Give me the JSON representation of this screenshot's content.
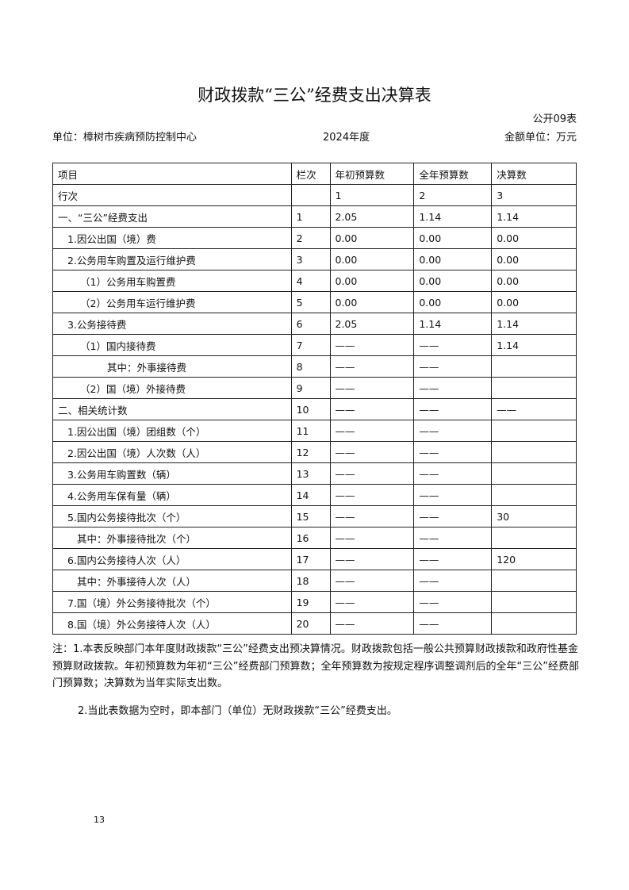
{
  "title": "财政拨款“三公”经费支出决算表",
  "form_no": "公开09表",
  "unit": "单位：樟树市疾病预防控制中心",
  "year": "2024年度",
  "amount_unit": "金额单位：万元",
  "table": {
    "headers": [
      "项目",
      "栏次",
      "年初预算数",
      "全年预算数",
      "决算数"
    ],
    "rows": [
      {
        "item": "行次",
        "no": "",
        "a": "1",
        "b": "2",
        "c": "3",
        "indent": 0
      },
      {
        "item": "一、“三公”经费支出",
        "no": "1",
        "a": "2.05",
        "b": "1.14",
        "c": "1.14",
        "indent": 0
      },
      {
        "item": "1.因公出国（境）费",
        "no": "2",
        "a": "0.00",
        "b": "0.00",
        "c": "0.00",
        "indent": 1
      },
      {
        "item": "2.公务用车购置及运行维护费",
        "no": "3",
        "a": "0.00",
        "b": "0.00",
        "c": "0.00",
        "indent": 1
      },
      {
        "item": "（1）公务用车购置费",
        "no": "4",
        "a": "0.00",
        "b": "0.00",
        "c": "0.00",
        "indent": 2
      },
      {
        "item": "（2）公务用车运行维护费",
        "no": "5",
        "a": "0.00",
        "b": "0.00",
        "c": "0.00",
        "indent": 2
      },
      {
        "item": "3.公务接待费",
        "no": "6",
        "a": "2.05",
        "b": "1.14",
        "c": "1.14",
        "indent": 1
      },
      {
        "item": "（1）国内接待费",
        "no": "7",
        "a": "——",
        "b": "——",
        "c": "1.14",
        "indent": 2
      },
      {
        "item": "其中：外事接待费",
        "no": "8",
        "a": "——",
        "b": "——",
        "c": "",
        "indent": 3
      },
      {
        "item": "（2）国（境）外接待费",
        "no": "9",
        "a": "——",
        "b": "——",
        "c": "",
        "indent": 2
      },
      {
        "item": "二、相关统计数",
        "no": "10",
        "a": "——",
        "b": "——",
        "c": "——",
        "indent": 0
      },
      {
        "item": "1.因公出国（境）团组数（个）",
        "no": "11",
        "a": "——",
        "b": "——",
        "c": "",
        "indent": 1
      },
      {
        "item": "2.因公出国（境）人次数（人）",
        "no": "12",
        "a": "——",
        "b": "——",
        "c": "",
        "indent": 1
      },
      {
        "item": "3.公务用车购置数（辆）",
        "no": "13",
        "a": "——",
        "b": "——",
        "c": "",
        "indent": 1
      },
      {
        "item": "4.公务用车保有量（辆）",
        "no": "14",
        "a": "——",
        "b": "——",
        "c": "",
        "indent": 1
      },
      {
        "item": "5.国内公务接待批次（个）",
        "no": "15",
        "a": "——",
        "b": "——",
        "c": "30",
        "indent": 1
      },
      {
        "item": "其中：外事接待批次（个）",
        "no": "16",
        "a": "——",
        "b": "——",
        "c": "",
        "indent": 4
      },
      {
        "item": "6.国内公务接待人次（人）",
        "no": "17",
        "a": "——",
        "b": "——",
        "c": "120",
        "indent": 1
      },
      {
        "item": "其中：外事接待人次（人）",
        "no": "18",
        "a": "——",
        "b": "——",
        "c": "",
        "indent": 4
      },
      {
        "item": "7.国（境）外公务接待批次（个）",
        "no": "19",
        "a": "——",
        "b": "——",
        "c": "",
        "indent": 1
      },
      {
        "item": "8.国（境）外公务接待人次（人）",
        "no": "20",
        "a": "——",
        "b": "——",
        "c": "",
        "indent": 1
      }
    ]
  },
  "note1": "注：1.本表反映部门本年度财政拨款“三公”经费支出预决算情况。财政拨款包括一般公共预算财政拨款和政府性基金预算财政拨款。年初预算数为年初“三公”经费部门预算数；全年预算数为按规定程序调整调剂后的全年“三公”经费部门预算数；决算数为当年实际支出数。",
  "note2": "2.当此表数据为空时，即本部门（单位）无财政拨款“三公”经费支出。",
  "page_number": "13"
}
